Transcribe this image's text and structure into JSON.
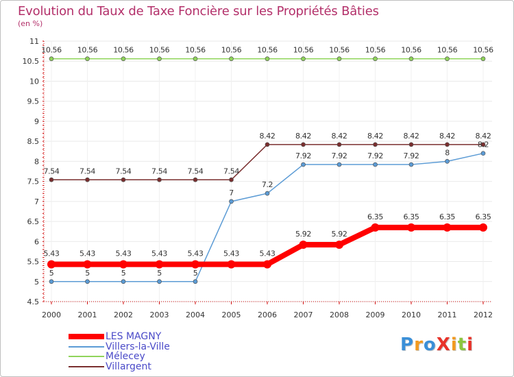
{
  "title": "Evolution du Taux de Taxe Foncière sur les Propriétés Bâties",
  "unit_label": "(en %)",
  "brand": {
    "text": "ProXiti",
    "letters": [
      {
        "ch": "P",
        "color": "#3a8fd8"
      },
      {
        "ch": "r",
        "color": "#f29a1f"
      },
      {
        "ch": "o",
        "color": "#3a8fd8"
      },
      {
        "ch": "X",
        "color": "#e8332a"
      },
      {
        "ch": "i",
        "color": "#f29a1f"
      },
      {
        "ch": "t",
        "color": "#8cc63f"
      },
      {
        "ch": "i",
        "color": "#e8332a"
      }
    ]
  },
  "chart_data": {
    "type": "line",
    "title": "Evolution du Taux de Taxe Foncière sur les Propriétés Bâties",
    "ylabel": "(en %)",
    "xlabel": "",
    "ylim": [
      4.5,
      11
    ],
    "yticks": [
      "4.5",
      "5",
      "5.5",
      "6",
      "6.5",
      "7",
      "7.5",
      "8",
      "8.5",
      "9",
      "9.5",
      "10",
      "10.5",
      "11"
    ],
    "ytick_values": [
      4.5,
      5,
      5.5,
      6,
      6.5,
      7,
      7.5,
      8,
      8.5,
      9,
      9.5,
      10,
      10.5,
      11
    ],
    "categories": [
      "2000",
      "2001",
      "2002",
      "2003",
      "2004",
      "2005",
      "2006",
      "2007",
      "2008",
      "2009",
      "2010",
      "2011",
      "2012"
    ],
    "legend_position": "bottom-left",
    "series": [
      {
        "name": "Mélecey",
        "color": "#8fd45a",
        "values": [
          10.56,
          10.56,
          10.56,
          10.56,
          10.56,
          10.56,
          10.56,
          10.56,
          10.56,
          10.56,
          10.56,
          10.56,
          10.56
        ],
        "labels": [
          "10.56",
          "10.56",
          "10.56",
          "10.56",
          "10.56",
          "10.56",
          "10.56",
          "10.56",
          "10.56",
          "10.56",
          "10.56",
          "10.56",
          "10.56"
        ]
      },
      {
        "name": "Villargent",
        "color": "#7a2e2e",
        "values": [
          7.54,
          7.54,
          7.54,
          7.54,
          7.54,
          7.54,
          8.42,
          8.42,
          8.42,
          8.42,
          8.42,
          8.42,
          8.42
        ],
        "labels": [
          "7.54",
          "7.54",
          "7.54",
          "7.54",
          "7.54",
          "7.54",
          "8.42",
          "8.42",
          "8.42",
          "8.42",
          "8.42",
          "8.42",
          "8.42"
        ]
      },
      {
        "name": "Villers-la-Ville",
        "color": "#5b9bd5",
        "values": [
          5,
          5,
          5,
          5,
          5,
          7,
          7.2,
          7.92,
          7.92,
          7.92,
          7.92,
          8,
          8.2
        ],
        "labels": [
          "5",
          "5",
          "5",
          "5",
          "5",
          "7",
          "7.2",
          "7.92",
          "7.92",
          "7.92",
          "7.92",
          "8",
          "8.2"
        ]
      },
      {
        "name": "LES MAGNY",
        "color": "#ff0000",
        "values": [
          5.43,
          5.43,
          5.43,
          5.43,
          5.43,
          5.43,
          5.43,
          5.92,
          5.92,
          6.35,
          6.35,
          6.35,
          6.35
        ],
        "labels": [
          "5.43",
          "5.43",
          "5.43",
          "5.43",
          "5.43",
          "5.43",
          "5.43",
          "5.92",
          "5.92",
          "6.35",
          "6.35",
          "6.35",
          "6.35"
        ]
      }
    ],
    "legend": [
      {
        "name": "LES MAGNY",
        "color": "#ff0000",
        "thick": true
      },
      {
        "name": "Villers-la-Ville",
        "color": "#5b9bd5",
        "thick": false
      },
      {
        "name": "Mélecey",
        "color": "#8fd45a",
        "thick": false
      },
      {
        "name": "Villargent",
        "color": "#7a2e2e",
        "thick": false
      }
    ]
  }
}
